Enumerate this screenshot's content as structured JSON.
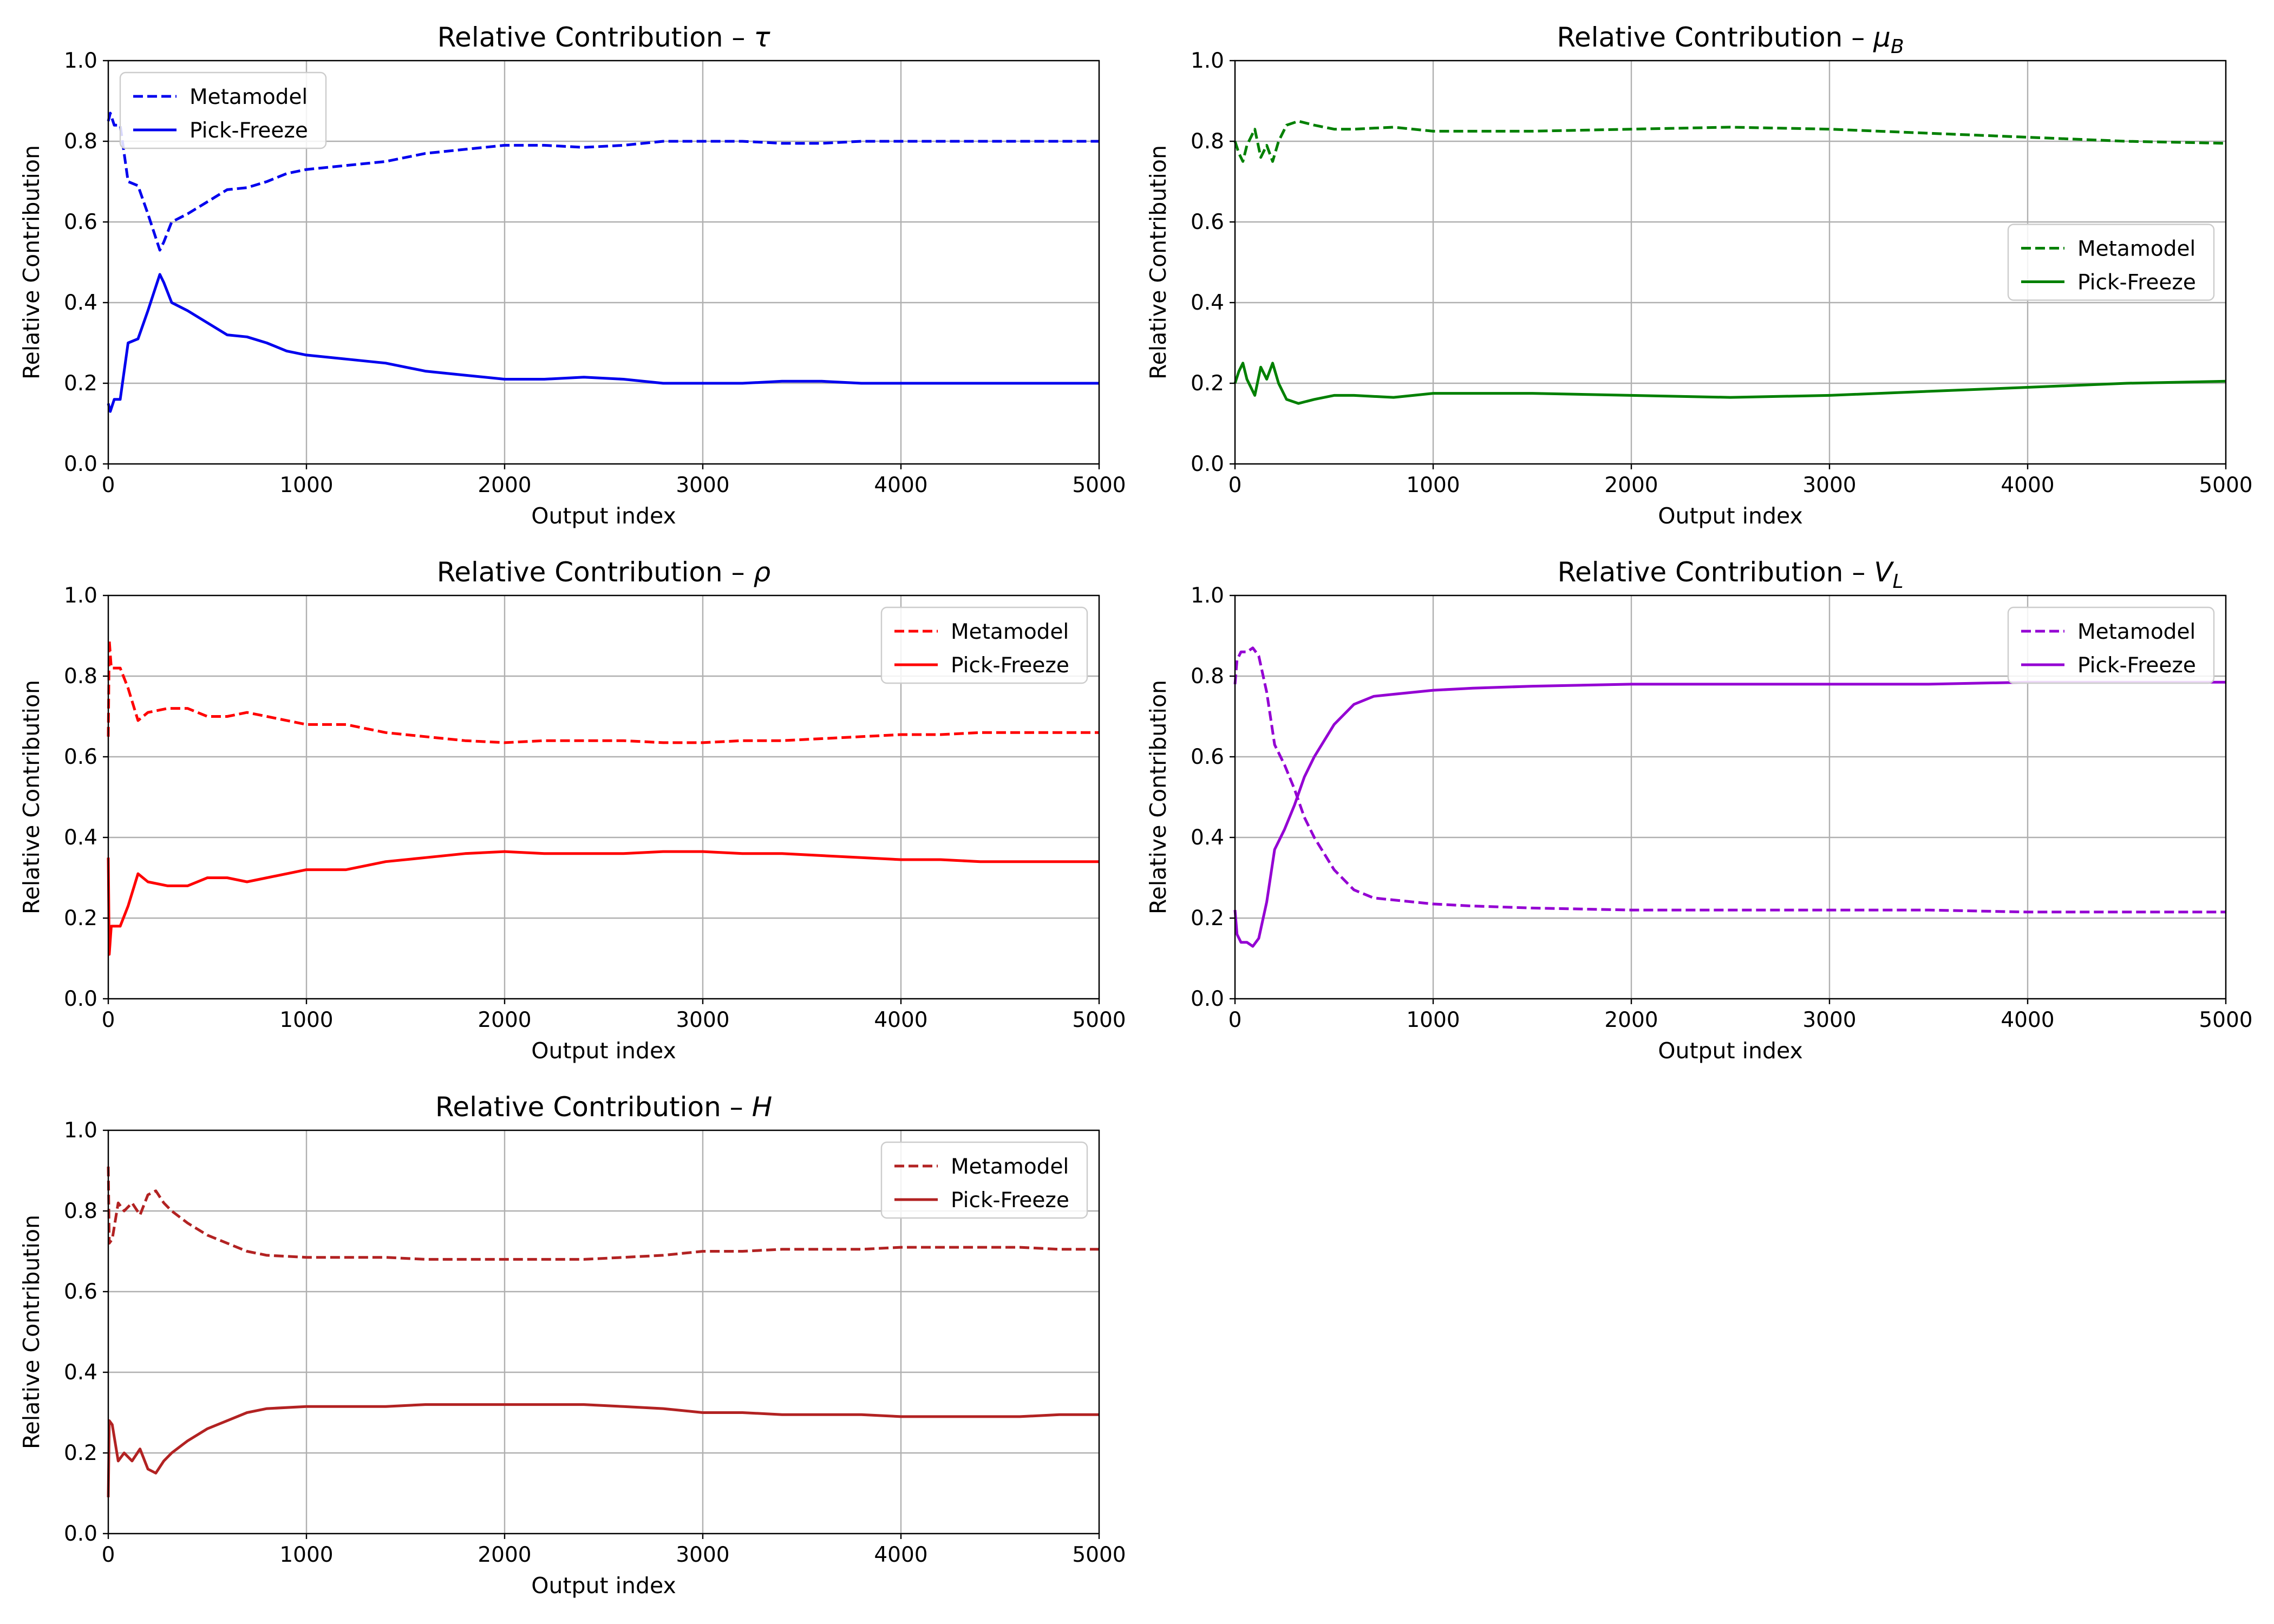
{
  "colors": {
    "tau": "#0000ee",
    "muB": "#008000",
    "rho": "#ff0000",
    "VL": "#9400d3",
    "H": "#b22222",
    "grid": "#b0b0b0",
    "axis": "#000000"
  },
  "chart_data": [
    {
      "type": "line",
      "title": "Relative Contribution – ",
      "title_symbol": "τ",
      "title_subscript": "",
      "xlabel": "Output index",
      "ylabel": "Relative Contribution",
      "xlim": [
        0,
        5000
      ],
      "ylim": [
        0.0,
        1.0
      ],
      "xticks": [
        "0",
        "1000",
        "2000",
        "3000",
        "4000",
        "5000"
      ],
      "yticks": [
        "0.0",
        "0.2",
        "0.4",
        "0.6",
        "0.8",
        "1.0"
      ],
      "grid": true,
      "legend_position": "upper-left",
      "color_key": "tau",
      "series": [
        {
          "name": "Metamodel",
          "style": "dashed",
          "x": [
            0,
            10,
            30,
            60,
            100,
            150,
            200,
            260,
            280,
            320,
            400,
            500,
            600,
            700,
            800,
            900,
            1000,
            1200,
            1400,
            1600,
            1800,
            2000,
            2200,
            2400,
            2600,
            2800,
            3000,
            3200,
            3400,
            3600,
            3800,
            4000,
            4200,
            4400,
            4600,
            4800,
            5000
          ],
          "y": [
            0.85,
            0.87,
            0.84,
            0.84,
            0.7,
            0.69,
            0.62,
            0.53,
            0.55,
            0.6,
            0.62,
            0.65,
            0.68,
            0.685,
            0.7,
            0.72,
            0.73,
            0.74,
            0.75,
            0.77,
            0.78,
            0.79,
            0.79,
            0.785,
            0.79,
            0.8,
            0.8,
            0.8,
            0.795,
            0.795,
            0.8,
            0.8,
            0.8,
            0.8,
            0.8,
            0.8,
            0.8
          ]
        },
        {
          "name": "Pick-Freeze",
          "style": "solid",
          "x": [
            0,
            10,
            30,
            60,
            100,
            150,
            200,
            260,
            280,
            320,
            400,
            500,
            600,
            700,
            800,
            900,
            1000,
            1200,
            1400,
            1600,
            1800,
            2000,
            2200,
            2400,
            2600,
            2800,
            3000,
            3200,
            3400,
            3600,
            3800,
            4000,
            4200,
            4400,
            4600,
            4800,
            5000
          ],
          "y": [
            0.15,
            0.13,
            0.16,
            0.16,
            0.3,
            0.31,
            0.38,
            0.47,
            0.45,
            0.4,
            0.38,
            0.35,
            0.32,
            0.315,
            0.3,
            0.28,
            0.27,
            0.26,
            0.25,
            0.23,
            0.22,
            0.21,
            0.21,
            0.215,
            0.21,
            0.2,
            0.2,
            0.2,
            0.205,
            0.205,
            0.2,
            0.2,
            0.2,
            0.2,
            0.2,
            0.2,
            0.2
          ]
        }
      ]
    },
    {
      "type": "line",
      "title": "Relative Contribution – ",
      "title_symbol": "μ",
      "title_subscript": "B",
      "xlabel": "Output index",
      "ylabel": "Relative Contribution",
      "xlim": [
        0,
        5000
      ],
      "ylim": [
        0.0,
        1.0
      ],
      "xticks": [
        "0",
        "1000",
        "2000",
        "3000",
        "4000",
        "5000"
      ],
      "yticks": [
        "0.0",
        "0.2",
        "0.4",
        "0.6",
        "0.8",
        "1.0"
      ],
      "grid": true,
      "legend_position": "center-right",
      "color_key": "muB",
      "series": [
        {
          "name": "Metamodel",
          "style": "dashed",
          "x": [
            0,
            20,
            40,
            60,
            100,
            130,
            160,
            190,
            220,
            260,
            320,
            400,
            500,
            600,
            800,
            1000,
            1200,
            1500,
            2000,
            2500,
            3000,
            3500,
            4000,
            4500,
            5000
          ],
          "y": [
            0.8,
            0.77,
            0.75,
            0.79,
            0.83,
            0.76,
            0.79,
            0.75,
            0.8,
            0.84,
            0.85,
            0.84,
            0.83,
            0.83,
            0.835,
            0.825,
            0.825,
            0.825,
            0.83,
            0.835,
            0.83,
            0.82,
            0.81,
            0.8,
            0.795
          ]
        },
        {
          "name": "Pick-Freeze",
          "style": "solid",
          "x": [
            0,
            20,
            40,
            60,
            100,
            130,
            160,
            190,
            220,
            260,
            320,
            400,
            500,
            600,
            800,
            1000,
            1200,
            1500,
            2000,
            2500,
            3000,
            3500,
            4000,
            4500,
            5000
          ],
          "y": [
            0.2,
            0.23,
            0.25,
            0.21,
            0.17,
            0.24,
            0.21,
            0.25,
            0.2,
            0.16,
            0.15,
            0.16,
            0.17,
            0.17,
            0.165,
            0.175,
            0.175,
            0.175,
            0.17,
            0.165,
            0.17,
            0.18,
            0.19,
            0.2,
            0.205
          ]
        }
      ]
    },
    {
      "type": "line",
      "title": "Relative Contribution – ",
      "title_symbol": "ρ",
      "title_subscript": "",
      "xlabel": "Output index",
      "ylabel": "Relative Contribution",
      "xlim": [
        0,
        5000
      ],
      "ylim": [
        0.0,
        1.0
      ],
      "xticks": [
        "0",
        "1000",
        "2000",
        "3000",
        "4000",
        "5000"
      ],
      "yticks": [
        "0.0",
        "0.2",
        "0.4",
        "0.6",
        "0.8",
        "1.0"
      ],
      "grid": true,
      "legend_position": "upper-right",
      "color_key": "rho",
      "series": [
        {
          "name": "Metamodel",
          "style": "dashed",
          "x": [
            0,
            5,
            15,
            30,
            60,
            100,
            150,
            200,
            300,
            400,
            500,
            600,
            700,
            800,
            1000,
            1200,
            1400,
            1600,
            1800,
            2000,
            2200,
            2400,
            2600,
            2800,
            3000,
            3200,
            3400,
            3600,
            3800,
            4000,
            4200,
            4400,
            4600,
            4800,
            5000
          ],
          "y": [
            0.65,
            0.89,
            0.82,
            0.82,
            0.82,
            0.77,
            0.69,
            0.71,
            0.72,
            0.72,
            0.7,
            0.7,
            0.71,
            0.7,
            0.68,
            0.68,
            0.66,
            0.65,
            0.64,
            0.635,
            0.64,
            0.64,
            0.64,
            0.635,
            0.635,
            0.64,
            0.64,
            0.645,
            0.65,
            0.655,
            0.655,
            0.66,
            0.66,
            0.66,
            0.66
          ]
        },
        {
          "name": "Pick-Freeze",
          "style": "solid",
          "x": [
            0,
            5,
            15,
            30,
            60,
            100,
            150,
            200,
            300,
            400,
            500,
            600,
            700,
            800,
            1000,
            1200,
            1400,
            1600,
            1800,
            2000,
            2200,
            2400,
            2600,
            2800,
            3000,
            3200,
            3400,
            3600,
            3800,
            4000,
            4200,
            4400,
            4600,
            4800,
            5000
          ],
          "y": [
            0.35,
            0.11,
            0.18,
            0.18,
            0.18,
            0.23,
            0.31,
            0.29,
            0.28,
            0.28,
            0.3,
            0.3,
            0.29,
            0.3,
            0.32,
            0.32,
            0.34,
            0.35,
            0.36,
            0.365,
            0.36,
            0.36,
            0.36,
            0.365,
            0.365,
            0.36,
            0.36,
            0.355,
            0.35,
            0.345,
            0.345,
            0.34,
            0.34,
            0.34,
            0.34
          ]
        }
      ]
    },
    {
      "type": "line",
      "title": "Relative Contribution – ",
      "title_symbol": "V",
      "title_subscript": "L",
      "xlabel": "Output index",
      "ylabel": "Relative Contribution",
      "xlim": [
        0,
        5000
      ],
      "ylim": [
        0.0,
        1.0
      ],
      "xticks": [
        "0",
        "1000",
        "2000",
        "3000",
        "4000",
        "5000"
      ],
      "yticks": [
        "0.0",
        "0.2",
        "0.4",
        "0.6",
        "0.8",
        "1.0"
      ],
      "grid": true,
      "legend_position": "upper-right",
      "color_key": "VL",
      "series": [
        {
          "name": "Metamodel",
          "style": "dashed",
          "x": [
            0,
            10,
            30,
            60,
            90,
            120,
            160,
            200,
            250,
            300,
            350,
            400,
            500,
            600,
            700,
            800,
            1000,
            1200,
            1500,
            2000,
            2500,
            3000,
            3500,
            4000,
            4500,
            5000
          ],
          "y": [
            0.78,
            0.84,
            0.86,
            0.86,
            0.87,
            0.85,
            0.76,
            0.63,
            0.58,
            0.52,
            0.45,
            0.4,
            0.32,
            0.27,
            0.25,
            0.245,
            0.235,
            0.23,
            0.225,
            0.22,
            0.22,
            0.22,
            0.22,
            0.215,
            0.215,
            0.215
          ]
        },
        {
          "name": "Pick-Freeze",
          "style": "solid",
          "x": [
            0,
            10,
            30,
            60,
            90,
            120,
            160,
            200,
            250,
            300,
            350,
            400,
            500,
            600,
            700,
            800,
            1000,
            1200,
            1500,
            2000,
            2500,
            3000,
            3500,
            4000,
            4500,
            5000
          ],
          "y": [
            0.22,
            0.16,
            0.14,
            0.14,
            0.13,
            0.15,
            0.24,
            0.37,
            0.42,
            0.48,
            0.55,
            0.6,
            0.68,
            0.73,
            0.75,
            0.755,
            0.765,
            0.77,
            0.775,
            0.78,
            0.78,
            0.78,
            0.78,
            0.785,
            0.785,
            0.785
          ]
        }
      ]
    },
    {
      "type": "line",
      "title": "Relative Contribution – ",
      "title_symbol": "H",
      "title_subscript": "",
      "xlabel": "Output index",
      "ylabel": "Relative Contribution",
      "xlim": [
        0,
        5000
      ],
      "ylim": [
        0.0,
        1.0
      ],
      "xticks": [
        "0",
        "1000",
        "2000",
        "3000",
        "4000",
        "5000"
      ],
      "yticks": [
        "0.0",
        "0.2",
        "0.4",
        "0.6",
        "0.8",
        "1.0"
      ],
      "grid": true,
      "legend_position": "upper-right",
      "color_key": "H",
      "series": [
        {
          "name": "Metamodel",
          "style": "dashed",
          "x": [
            0,
            5,
            20,
            50,
            80,
            120,
            160,
            200,
            240,
            280,
            320,
            400,
            500,
            600,
            700,
            800,
            1000,
            1200,
            1400,
            1600,
            1800,
            2000,
            2200,
            2400,
            2600,
            2800,
            3000,
            3200,
            3400,
            3600,
            3800,
            4000,
            4200,
            4400,
            4600,
            4800,
            5000
          ],
          "y": [
            0.91,
            0.72,
            0.73,
            0.82,
            0.8,
            0.82,
            0.79,
            0.84,
            0.85,
            0.82,
            0.8,
            0.77,
            0.74,
            0.72,
            0.7,
            0.69,
            0.685,
            0.685,
            0.685,
            0.68,
            0.68,
            0.68,
            0.68,
            0.68,
            0.685,
            0.69,
            0.7,
            0.7,
            0.705,
            0.705,
            0.705,
            0.71,
            0.71,
            0.71,
            0.71,
            0.705,
            0.705
          ]
        },
        {
          "name": "Pick-Freeze",
          "style": "solid",
          "x": [
            0,
            5,
            20,
            50,
            80,
            120,
            160,
            200,
            240,
            280,
            320,
            400,
            500,
            600,
            700,
            800,
            1000,
            1200,
            1400,
            1600,
            1800,
            2000,
            2200,
            2400,
            2600,
            2800,
            3000,
            3200,
            3400,
            3600,
            3800,
            4000,
            4200,
            4400,
            4600,
            4800,
            5000
          ],
          "y": [
            0.09,
            0.28,
            0.27,
            0.18,
            0.2,
            0.18,
            0.21,
            0.16,
            0.15,
            0.18,
            0.2,
            0.23,
            0.26,
            0.28,
            0.3,
            0.31,
            0.315,
            0.315,
            0.315,
            0.32,
            0.32,
            0.32,
            0.32,
            0.32,
            0.315,
            0.31,
            0.3,
            0.3,
            0.295,
            0.295,
            0.295,
            0.29,
            0.29,
            0.29,
            0.29,
            0.295,
            0.295
          ]
        }
      ]
    }
  ]
}
